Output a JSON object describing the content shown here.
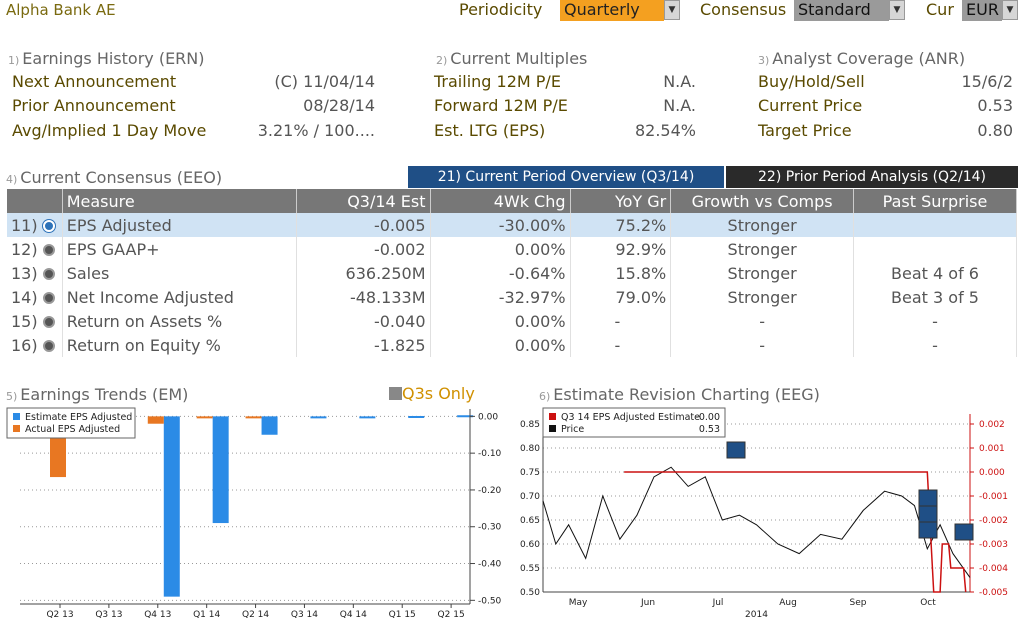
{
  "header": {
    "title": "Alpha Bank AE",
    "periodicity_label": "Periodicity",
    "periodicity_value": "Quarterly",
    "consensus_label": "Consensus",
    "consensus_value": "Standard",
    "currency_label": "Cur",
    "currency_value": "EUR"
  },
  "earnings_history": {
    "num": "1)",
    "title": "Earnings History (ERN)",
    "rows": [
      {
        "label": "Next Announcement",
        "value": "(C)  11/04/14"
      },
      {
        "label": "Prior Announcement",
        "value": "08/28/14"
      },
      {
        "label": "Avg/Implied 1 Day Move",
        "value": "3.21% / 100...."
      }
    ]
  },
  "current_multiples": {
    "num": "2)",
    "title": "Current Multiples",
    "rows": [
      {
        "label": "Trailing 12M P/E",
        "value": "N.A."
      },
      {
        "label": "Forward 12M P/E",
        "value": "N.A."
      },
      {
        "label": "Est. LTG (EPS)",
        "value": "82.54%"
      }
    ]
  },
  "analyst_coverage": {
    "num": "3)",
    "title": "Analyst Coverage (ANR)",
    "rows": [
      {
        "label": "Buy/Hold/Sell",
        "value": "15/6/2"
      },
      {
        "label": "Current Price",
        "value": "0.53"
      },
      {
        "label": "Target Price",
        "value": "0.80"
      }
    ]
  },
  "consensus": {
    "num": "4)",
    "title": "Current Consensus (EEO)",
    "tab_current": "21) Current Period Overview (Q3/14)",
    "tab_prior": "22) Prior Period Analysis (Q2/14)",
    "columns": [
      "Measure",
      "Q3/14 Est",
      "4Wk Chg",
      "YoY Gr",
      "Growth vs Comps",
      "Past Surprise"
    ],
    "rows": [
      {
        "num": "11)",
        "measure": "EPS Adjusted",
        "est": "-0.005",
        "chg": "-30.00%",
        "yoy": "75.2%",
        "growth": "Stronger",
        "surprise": ""
      },
      {
        "num": "12)",
        "measure": "EPS GAAP+",
        "est": "-0.002",
        "chg": "0.00%",
        "yoy": "92.9%",
        "growth": "Stronger",
        "surprise": ""
      },
      {
        "num": "13)",
        "measure": "Sales",
        "est": "636.250M",
        "chg": "-0.64%",
        "yoy": "15.8%",
        "growth": "Stronger",
        "surprise": "Beat 4 of 6"
      },
      {
        "num": "14)",
        "measure": "Net Income Adjusted",
        "est": "-48.133M",
        "chg": "-32.97%",
        "yoy": "79.0%",
        "growth": "Stronger",
        "surprise": "Beat 3 of 5"
      },
      {
        "num": "15)",
        "measure": "Return on Assets %",
        "est": "-0.040",
        "chg": "0.00%",
        "yoy": "-",
        "growth": "-",
        "surprise": "-"
      },
      {
        "num": "16)",
        "measure": "Return on Equity %",
        "est": "-1.825",
        "chg": "0.00%",
        "yoy": "-",
        "growth": "-",
        "surprise": "-"
      }
    ]
  },
  "earnings_trends": {
    "num": "5)",
    "title": "Earnings Trends (EM)",
    "toggle_label": "Q3s Only"
  },
  "estimate_revision": {
    "num": "6)",
    "title": "Estimate Revision Charting (EEG)"
  },
  "colors": {
    "estimate_bar": "#2b8be6",
    "actual_bar": "#e87722",
    "estimate_line": "#cc1111",
    "price_line": "#111111",
    "selected_row": "#d0e3f4",
    "tab_active": "#1f4f86",
    "tab_inactive": "#2a2a2a",
    "dropdown_orange": "#f4a020",
    "dropdown_gray": "#9a9a9a"
  },
  "chart_data": [
    {
      "type": "bar",
      "categories": [
        "Q2 13",
        "Q3 13",
        "Q4 13",
        "Q1 14",
        "Q2 14",
        "Q3 14",
        "Q4 14",
        "Q1 15",
        "Q2 15"
      ],
      "series": [
        {
          "name": "Estimate EPS Adjusted",
          "values": [
            null,
            null,
            -0.49,
            -0.29,
            -0.05,
            -0.005,
            -0.002,
            0.001,
            0.003
          ]
        },
        {
          "name": "Actual EPS Adjusted",
          "values": [
            -0.165,
            null,
            -0.02,
            -0.005,
            -0.002,
            null,
            null,
            null,
            null
          ]
        }
      ],
      "y_ticks": [
        "0.00",
        "-0.10",
        "-0.20",
        "-0.30",
        "-0.40",
        "-0.50"
      ],
      "ylim": [
        -0.51,
        0.02
      ],
      "legend": "top-left"
    },
    {
      "type": "line",
      "x_ticks": [
        "May",
        "Jun",
        "Jul",
        "Aug",
        "Sep",
        "Oct"
      ],
      "x_year": "2014",
      "series": [
        {
          "name": "Q3 14 EPS Adjusted Estimate",
          "legend_value": "-0.00",
          "axis": "right",
          "points": [
            [
              0.5,
              0.0
            ],
            [
              0.55,
              0.0
            ],
            [
              0.9,
              0.0
            ],
            [
              0.915,
              -0.005
            ],
            [
              0.93,
              -0.005
            ],
            [
              0.935,
              -0.003
            ],
            [
              0.95,
              -0.003
            ],
            [
              0.955,
              -0.004
            ],
            [
              0.985,
              -0.004
            ],
            [
              0.99,
              -0.005
            ]
          ]
        },
        {
          "name": "Price",
          "legend_value": "0.53",
          "axis": "left",
          "points": [
            [
              0.0,
              0.69
            ],
            [
              0.03,
              0.6
            ],
            [
              0.06,
              0.64
            ],
            [
              0.1,
              0.57
            ],
            [
              0.14,
              0.7
            ],
            [
              0.18,
              0.61
            ],
            [
              0.22,
              0.66
            ],
            [
              0.26,
              0.74
            ],
            [
              0.3,
              0.76
            ],
            [
              0.34,
              0.72
            ],
            [
              0.38,
              0.74
            ],
            [
              0.42,
              0.65
            ],
            [
              0.46,
              0.66
            ],
            [
              0.5,
              0.64
            ],
            [
              0.55,
              0.6
            ],
            [
              0.6,
              0.58
            ],
            [
              0.65,
              0.62
            ],
            [
              0.7,
              0.61
            ],
            [
              0.75,
              0.67
            ],
            [
              0.8,
              0.71
            ],
            [
              0.84,
              0.7
            ],
            [
              0.87,
              0.68
            ],
            [
              0.9,
              0.59
            ],
            [
              0.93,
              0.64
            ],
            [
              0.96,
              0.58
            ],
            [
              1.0,
              0.53
            ]
          ]
        }
      ],
      "y_left_ticks": [
        "0.85",
        "0.80",
        "0.75",
        "0.70",
        "0.65",
        "0.60",
        "0.55",
        "0.50"
      ],
      "y_right_ticks": [
        "0.002",
        "0.001",
        "0.000",
        "-0.001",
        "-0.002",
        "-0.003",
        "-0.004",
        "-0.005"
      ],
      "ylim_left": [
        0.5,
        0.85
      ],
      "ylim_right": [
        -0.005,
        0.002
      ],
      "legend": "top-left"
    }
  ]
}
